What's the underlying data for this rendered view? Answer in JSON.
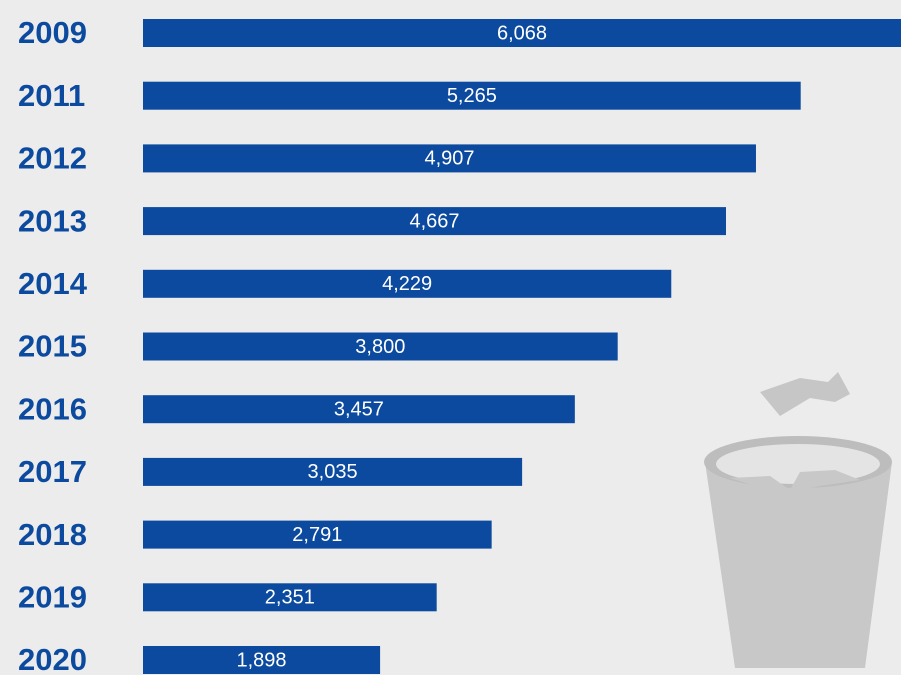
{
  "chart_data": {
    "type": "bar",
    "orientation": "horizontal",
    "color": "#0b4a9e",
    "categories": [
      "2009",
      "2011",
      "2012",
      "2013",
      "2014",
      "2015",
      "2016",
      "2017",
      "2018",
      "2019",
      "2020"
    ],
    "values": [
      6068,
      5265,
      4907,
      4667,
      4229,
      3800,
      3457,
      3035,
      2791,
      2351,
      1898
    ],
    "value_labels": [
      "6,068",
      "5,265",
      "4,907",
      "4,667",
      "4,229",
      "3,800",
      "3,457",
      "3,035",
      "2,791",
      "2,351",
      "1,898"
    ]
  }
}
